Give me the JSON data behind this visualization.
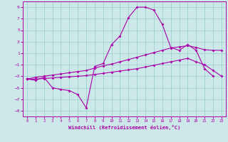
{
  "xlabel": "Windchill (Refroidissement éolien,°C)",
  "background_color": "#cce8e8",
  "grid_color": "#99cccc",
  "line_color": "#aa00aa",
  "hours": [
    0,
    1,
    2,
    3,
    4,
    5,
    6,
    7,
    8,
    9,
    10,
    11,
    12,
    13,
    14,
    15,
    16,
    17,
    18,
    19,
    20,
    21,
    22,
    23
  ],
  "temp_curve": [
    -3.5,
    -3.7,
    -3.2,
    -5.0,
    -5.3,
    -5.5,
    -6.2,
    -8.5,
    -1.3,
    -0.8,
    2.5,
    4.0,
    7.2,
    9.0,
    9.0,
    8.5,
    6.0,
    2.0,
    1.5,
    2.5,
    1.5,
    -1.7,
    -3.0,
    null
  ],
  "upper_line": [
    -3.5,
    -3.2,
    -3.0,
    -2.8,
    -2.6,
    -2.4,
    -2.2,
    -2.0,
    -1.6,
    -1.2,
    -0.9,
    -0.5,
    -0.1,
    0.3,
    0.7,
    1.1,
    1.5,
    1.9,
    2.1,
    2.3,
    2.0,
    1.6,
    1.5,
    1.5
  ],
  "lower_line": [
    -3.5,
    -3.5,
    -3.4,
    -3.3,
    -3.2,
    -3.1,
    -3.0,
    -2.9,
    -2.7,
    -2.5,
    -2.3,
    -2.1,
    -1.9,
    -1.7,
    -1.4,
    -1.1,
    -0.8,
    -0.5,
    -0.2,
    0.1,
    -0.5,
    -1.0,
    -2.0,
    -3.0
  ],
  "ylim": [
    -10,
    10
  ],
  "yticks": [
    -9,
    -7,
    -5,
    -3,
    -1,
    1,
    3,
    5,
    7,
    9
  ],
  "xlim": [
    -0.5,
    23.5
  ],
  "xticks": [
    0,
    1,
    2,
    3,
    4,
    5,
    6,
    7,
    8,
    9,
    10,
    11,
    12,
    13,
    14,
    15,
    16,
    17,
    18,
    19,
    20,
    21,
    22,
    23
  ]
}
